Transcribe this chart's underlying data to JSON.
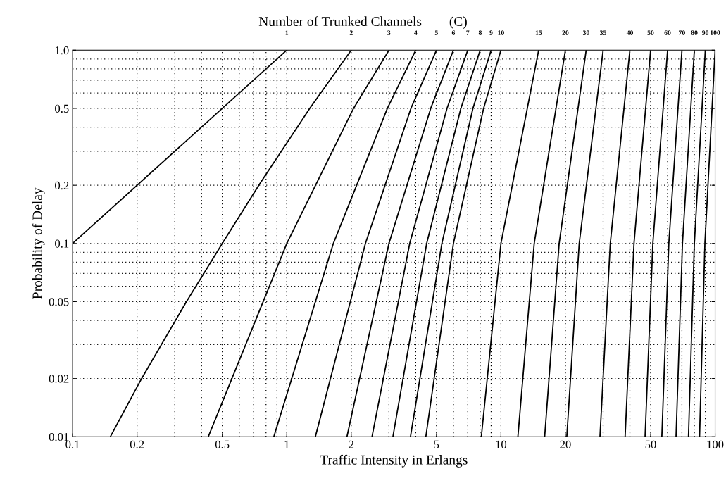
{
  "chart_data": {
    "type": "line",
    "xlabel": "Traffic Intensity in Erlangs",
    "ylabel": "Probability of Delay",
    "annotations": [
      "Number of Trunked Channels        (C)"
    ],
    "log": "xy",
    "grid": true,
    "marker": "none",
    "line_style": "solid",
    "xlim": [
      0.1,
      100
    ],
    "xticks": [
      0.1,
      0.2,
      0.5,
      1,
      2,
      5,
      10,
      20,
      50,
      100
    ],
    "ylim": [
      0.01,
      1
    ],
    "yticks": [
      0.01,
      0.02,
      0.05,
      0.1,
      0.2,
      0.5,
      {
        "value": 1,
        "label": "1.0"
      }
    ],
    "series": [
      {
        "name": "1",
        "color": "#000000",
        "x": [
          0.1,
          1
        ],
        "values": [
          0.1,
          1
        ]
      },
      {
        "name": "2",
        "color": "#000000",
        "x": [
          0.15,
          0.21,
          0.34,
          0.5,
          0.74,
          1.28,
          2
        ],
        "values": [
          0.01,
          0.02,
          0.05,
          0.1,
          0.2,
          0.5,
          1
        ]
      },
      {
        "name": "3",
        "color": "#000000",
        "x": [
          0.43,
          1.0,
          2.05,
          3
        ],
        "values": [
          0.01,
          0.1,
          0.5,
          1
        ]
      },
      {
        "name": "4",
        "color": "#000000",
        "x": [
          0.87,
          1.65,
          2.95,
          4
        ],
        "values": [
          0.01,
          0.1,
          0.5,
          1
        ]
      },
      {
        "name": "5",
        "color": "#000000",
        "x": [
          1.36,
          2.33,
          3.8,
          5
        ],
        "values": [
          0.01,
          0.1,
          0.5,
          1
        ]
      },
      {
        "name": "6",
        "color": "#000000",
        "x": [
          1.91,
          3.0,
          4.7,
          6
        ],
        "values": [
          0.01,
          0.1,
          0.5,
          1
        ]
      },
      {
        "name": "7",
        "color": "#000000",
        "x": [
          2.5,
          3.75,
          5.6,
          7
        ],
        "values": [
          0.01,
          0.1,
          0.5,
          1
        ]
      },
      {
        "name": "8",
        "color": "#000000",
        "x": [
          3.13,
          4.5,
          6.5,
          8
        ],
        "values": [
          0.01,
          0.1,
          0.5,
          1
        ]
      },
      {
        "name": "9",
        "color": "#000000",
        "x": [
          3.78,
          5.3,
          7.4,
          9
        ],
        "values": [
          0.01,
          0.1,
          0.5,
          1
        ]
      },
      {
        "name": "10",
        "color": "#000000",
        "x": [
          4.46,
          6.0,
          8.3,
          10
        ],
        "values": [
          0.01,
          0.1,
          0.5,
          1
        ]
      },
      {
        "name": "15",
        "color": "#000000",
        "x": [
          8.1,
          10.0,
          15
        ],
        "values": [
          0.01,
          0.1,
          1
        ]
      },
      {
        "name": "20",
        "color": "#000000",
        "x": [
          12.0,
          14.3,
          20
        ],
        "values": [
          0.01,
          0.1,
          1
        ]
      },
      {
        "name": "30",
        "color": "#000000",
        "x": [
          16.0,
          18.7,
          25
        ],
        "values": [
          0.01,
          0.1,
          1
        ]
      },
      {
        "name": "35",
        "color": "#000000",
        "x": [
          20.3,
          23.2,
          30
        ],
        "values": [
          0.01,
          0.1,
          1
        ]
      },
      {
        "name": "40",
        "color": "#000000",
        "x": [
          29.0,
          32.4,
          40
        ],
        "values": [
          0.01,
          0.1,
          1
        ]
      },
      {
        "name": "50",
        "color": "#000000",
        "x": [
          38.0,
          41.8,
          50
        ],
        "values": [
          0.01,
          0.1,
          1
        ]
      },
      {
        "name": "60",
        "color": "#000000",
        "x": [
          47.1,
          51.2,
          60
        ],
        "values": [
          0.01,
          0.1,
          1
        ]
      },
      {
        "name": "70",
        "color": "#000000",
        "x": [
          56.4,
          60.8,
          70
        ],
        "values": [
          0.01,
          0.1,
          1
        ]
      },
      {
        "name": "80",
        "color": "#000000",
        "x": [
          65.7,
          70.4,
          80
        ],
        "values": [
          0.01,
          0.1,
          1
        ]
      },
      {
        "name": "90",
        "color": "#000000",
        "x": [
          75.1,
          80.0,
          90
        ],
        "values": [
          0.01,
          0.1,
          1
        ]
      },
      {
        "name": "100",
        "color": "#000000",
        "x": [
          84.6,
          89.6,
          100
        ],
        "values": [
          0.01,
          0.1,
          1
        ]
      }
    ]
  }
}
